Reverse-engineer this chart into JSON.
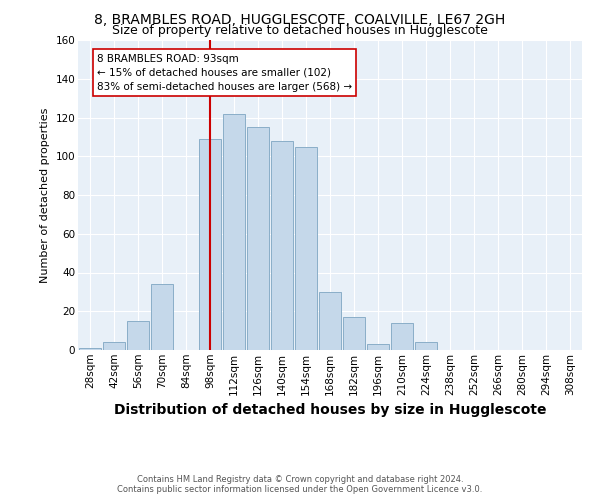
{
  "title": "8, BRAMBLES ROAD, HUGGLESCOTE, COALVILLE, LE67 2GH",
  "subtitle": "Size of property relative to detached houses in Hugglescote",
  "xlabel": "Distribution of detached houses by size in Hugglescote",
  "ylabel": "Number of detached properties",
  "footer_line1": "Contains HM Land Registry data © Crown copyright and database right 2024.",
  "footer_line2": "Contains public sector information licensed under the Open Government Licence v3.0.",
  "bin_labels": [
    "28sqm",
    "42sqm",
    "56sqm",
    "70sqm",
    "84sqm",
    "98sqm",
    "112sqm",
    "126sqm",
    "140sqm",
    "154sqm",
    "168sqm",
    "182sqm",
    "196sqm",
    "210sqm",
    "224sqm",
    "238sqm",
    "252sqm",
    "266sqm",
    "280sqm",
    "294sqm",
    "308sqm"
  ],
  "bar_values": [
    1,
    4,
    15,
    34,
    0,
    109,
    122,
    115,
    108,
    105,
    30,
    17,
    3,
    14,
    4,
    0,
    0,
    0,
    0,
    0,
    0
  ],
  "bar_color": "#c5d8ea",
  "bar_edge_color": "#8aaec8",
  "property_label": "8 BRAMBLES ROAD: 93sqm",
  "annotation_line1": "← 15% of detached houses are smaller (102)",
  "annotation_line2": "83% of semi-detached houses are larger (568) →",
  "vline_color": "#cc0000",
  "annotation_box_color": "#ffffff",
  "annotation_box_edge_color": "#cc0000",
  "ylim": [
    0,
    160
  ],
  "yticks": [
    0,
    20,
    40,
    60,
    80,
    100,
    120,
    140,
    160
  ],
  "background_color": "#ffffff",
  "plot_background_color": "#e8f0f8",
  "title_fontsize": 10,
  "subtitle_fontsize": 9,
  "xlabel_fontsize": 10,
  "ylabel_fontsize": 8,
  "tick_fontsize": 7.5,
  "footer_fontsize": 6,
  "annotation_fontsize": 7.5
}
